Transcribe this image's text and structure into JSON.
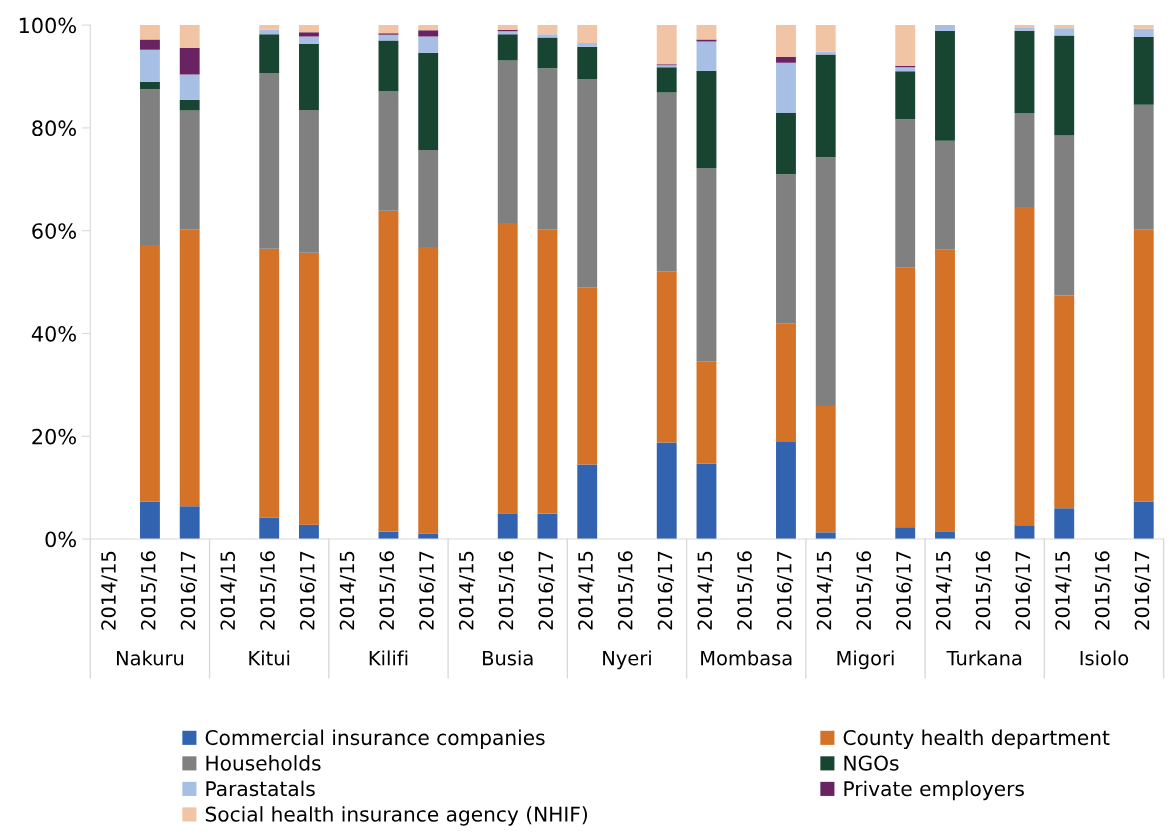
{
  "chart_data": {
    "type": "bar",
    "stacked": true,
    "categories": [
      "2014/15",
      "2015/16",
      "2016/17",
      "2014/15",
      "2015/16",
      "2016/17",
      "2014/15",
      "2015/16",
      "2016/17",
      "2014/15",
      "2015/16",
      "2016/17",
      "2014/15",
      "2015/16",
      "2016/17",
      "2014/15",
      "2015/16",
      "2016/17",
      "2014/15",
      "2015/16",
      "2016/17",
      "2014/15",
      "2015/16",
      "2016/17",
      "2014/15",
      "2015/16",
      "2016/17"
    ],
    "annotations": [
      "Nakuru",
      "Kitui",
      "Kilifi",
      "Busia",
      "Nyeri",
      "Mombasa",
      "Migori",
      "Turkana",
      "Isiolo"
    ],
    "ylim": [
      0,
      100
    ],
    "yticks": [
      {
        "value": 0,
        "label": "0%"
      },
      {
        "value": 20,
        "label": "20%"
      },
      {
        "value": 40,
        "label": "40%"
      },
      {
        "value": 60,
        "label": "60%"
      },
      {
        "value": 80,
        "label": "80%"
      },
      {
        "value": 100,
        "label": "100%"
      }
    ],
    "grid": false,
    "legend": "bottom",
    "series": [
      {
        "name": "Commercial insurance companies",
        "color": "#3263b0",
        "values": [
          null,
          7.3,
          6.4,
          null,
          4.2,
          2.8,
          null,
          1.4,
          1.1,
          null,
          5.0,
          4.9,
          14.5,
          null,
          18.8,
          14.7,
          null,
          18.9,
          1.3,
          null,
          2.3,
          1.5,
          null,
          2.7,
          6.0,
          null,
          7.3
        ]
      },
      {
        "name": "County health department",
        "color": "#d47228",
        "values": [
          null,
          49.9,
          53.9,
          null,
          52.3,
          52.9,
          null,
          62.5,
          55.7,
          null,
          56.5,
          55.4,
          34.5,
          null,
          33.3,
          19.9,
          null,
          23.1,
          24.6,
          null,
          50.5,
          54.8,
          null,
          61.9,
          41.4,
          null,
          53.0
        ]
      },
      {
        "name": "Households",
        "color": "#808080",
        "values": [
          null,
          30.3,
          23.1,
          null,
          34.2,
          27.8,
          null,
          23.3,
          18.9,
          null,
          31.6,
          31.3,
          40.5,
          null,
          34.8,
          37.6,
          null,
          29.0,
          48.4,
          null,
          28.9,
          21.2,
          null,
          18.3,
          31.1,
          null,
          24.2
        ]
      },
      {
        "name": "NGOs",
        "color": "#174532",
        "values": [
          null,
          1.5,
          2.1,
          null,
          7.5,
          12.8,
          null,
          9.8,
          18.9,
          null,
          5.1,
          6.0,
          6.3,
          null,
          4.9,
          18.9,
          null,
          11.9,
          20.0,
          null,
          9.3,
          21.4,
          null,
          16.0,
          19.5,
          null,
          13.2
        ]
      },
      {
        "name": "Parastatals",
        "color": "#a7bfe5",
        "values": [
          null,
          6.2,
          4.9,
          null,
          0.9,
          1.5,
          null,
          1.1,
          3.2,
          null,
          0.6,
          0.6,
          0.7,
          null,
          0.4,
          5.7,
          null,
          9.8,
          0.5,
          null,
          0.8,
          1.1,
          null,
          0.7,
          1.4,
          null,
          1.6
        ]
      },
      {
        "name": "Private employers",
        "color": "#6a2362",
        "values": [
          null,
          2.0,
          5.2,
          null,
          0,
          0.8,
          null,
          0.3,
          1.2,
          null,
          0.3,
          0,
          0,
          null,
          0.2,
          0.4,
          null,
          1.1,
          0,
          null,
          0.3,
          0,
          null,
          0,
          0,
          null,
          0
        ]
      },
      {
        "name": "Social health insurance agency (NHIF)",
        "color": "#f0c4a5",
        "values": [
          null,
          2.8,
          4.4,
          null,
          0.9,
          1.4,
          null,
          1.6,
          1.0,
          null,
          0.9,
          1.8,
          3.5,
          null,
          7.6,
          2.8,
          null,
          6.2,
          5.2,
          null,
          7.9,
          0,
          null,
          0.4,
          0.6,
          null,
          0.7
        ]
      }
    ]
  }
}
